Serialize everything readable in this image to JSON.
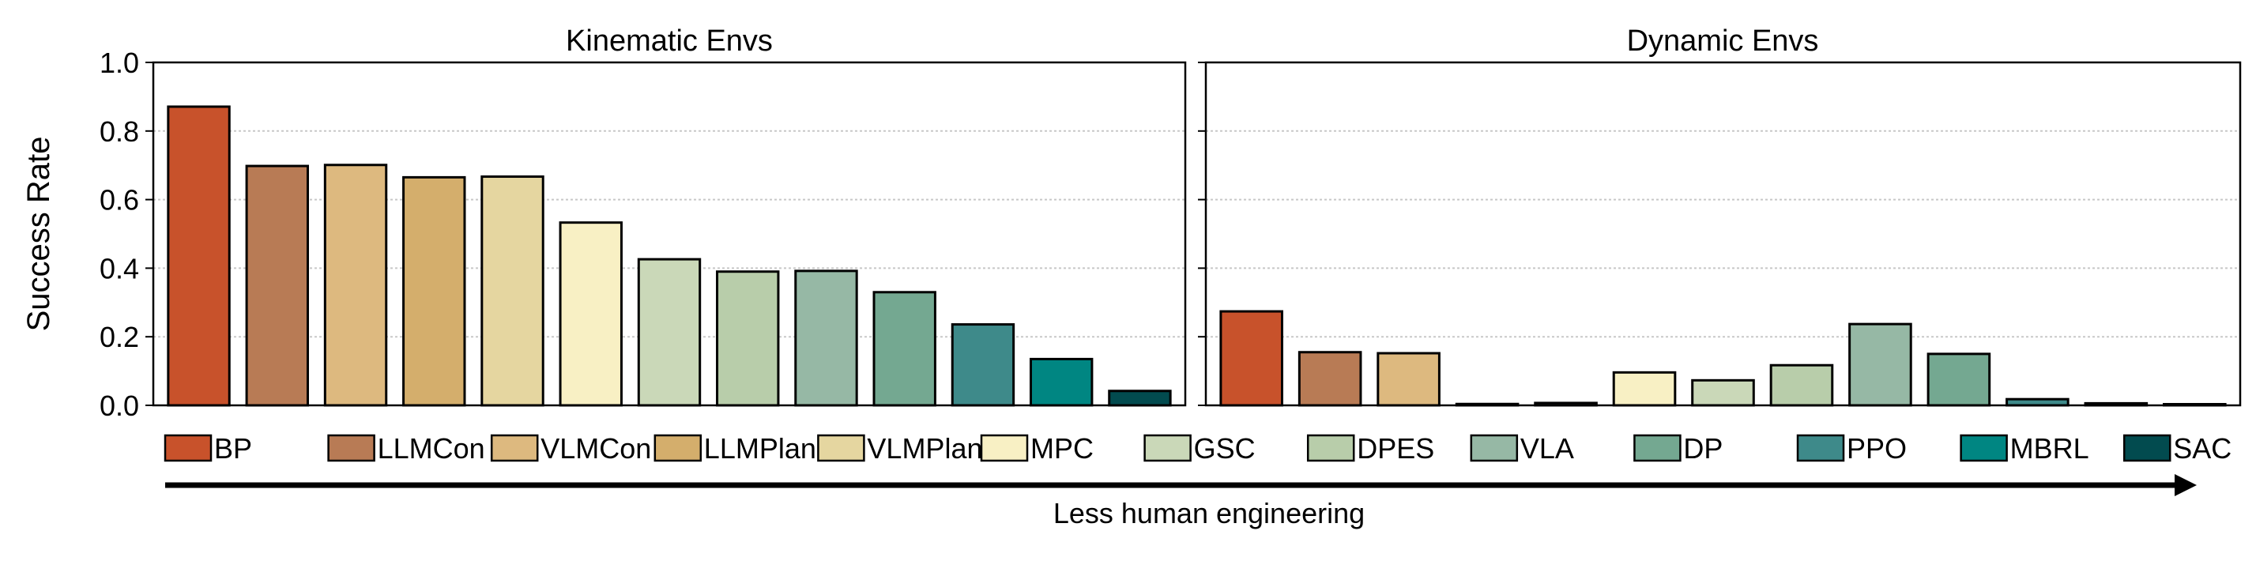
{
  "chart_data": [
    {
      "type": "bar",
      "title": "Kinematic Envs",
      "ylabel": "Success Rate",
      "ylim": [
        0,
        1.0
      ],
      "yticks": [
        "0.0",
        "0.2",
        "0.4",
        "0.6",
        "0.8",
        "1.0"
      ],
      "grid": "horizontal dotted",
      "categories": [
        "BP",
        "LLMCon",
        "VLMCon",
        "LLMPlan",
        "VLMPlan",
        "MPC",
        "GSC",
        "DPES",
        "VLA",
        "DP",
        "PPO",
        "MBRL",
        "SAC"
      ],
      "values": [
        0.871,
        0.698,
        0.701,
        0.665,
        0.667,
        0.533,
        0.426,
        0.39,
        0.392,
        0.33,
        0.236,
        0.135,
        0.042
      ]
    },
    {
      "type": "bar",
      "title": "Dynamic Envs",
      "ylim": [
        0,
        1.0
      ],
      "grid": "horizontal dotted",
      "categories": [
        "BP",
        "LLMCon",
        "VLMCon",
        "LLMPlan",
        "VLMPlan",
        "MPC",
        "GSC",
        "DPES",
        "VLA",
        "DP",
        "PPO",
        "MBRL",
        "SAC"
      ],
      "values": [
        0.274,
        0.155,
        0.152,
        0.004,
        0.007,
        0.096,
        0.073,
        0.117,
        0.237,
        0.15,
        0.018,
        0.006,
        0.001
      ]
    }
  ],
  "legend": {
    "placement": "bottom",
    "items": [
      {
        "label": "BP",
        "color": "#C8522B"
      },
      {
        "label": "LLMCon",
        "color": "#B87B55"
      },
      {
        "label": "VLMCon",
        "color": "#DDB97F"
      },
      {
        "label": "LLMPlan",
        "color": "#D4AE6C"
      },
      {
        "label": "VLMPlan",
        "color": "#E5D6A0"
      },
      {
        "label": "MPC",
        "color": "#F8F0C4"
      },
      {
        "label": "GSC",
        "color": "#CAD8B8"
      },
      {
        "label": "DPES",
        "color": "#B8CDAA"
      },
      {
        "label": "VLA",
        "color": "#96B8A5"
      },
      {
        "label": "DP",
        "color": "#74A891"
      },
      {
        "label": "PPO",
        "color": "#3E8A8A"
      },
      {
        "label": "MBRL",
        "color": "#008682"
      },
      {
        "label": "SAC",
        "color": "#024B4F"
      }
    ]
  },
  "arrow_label": "Less human engineering"
}
